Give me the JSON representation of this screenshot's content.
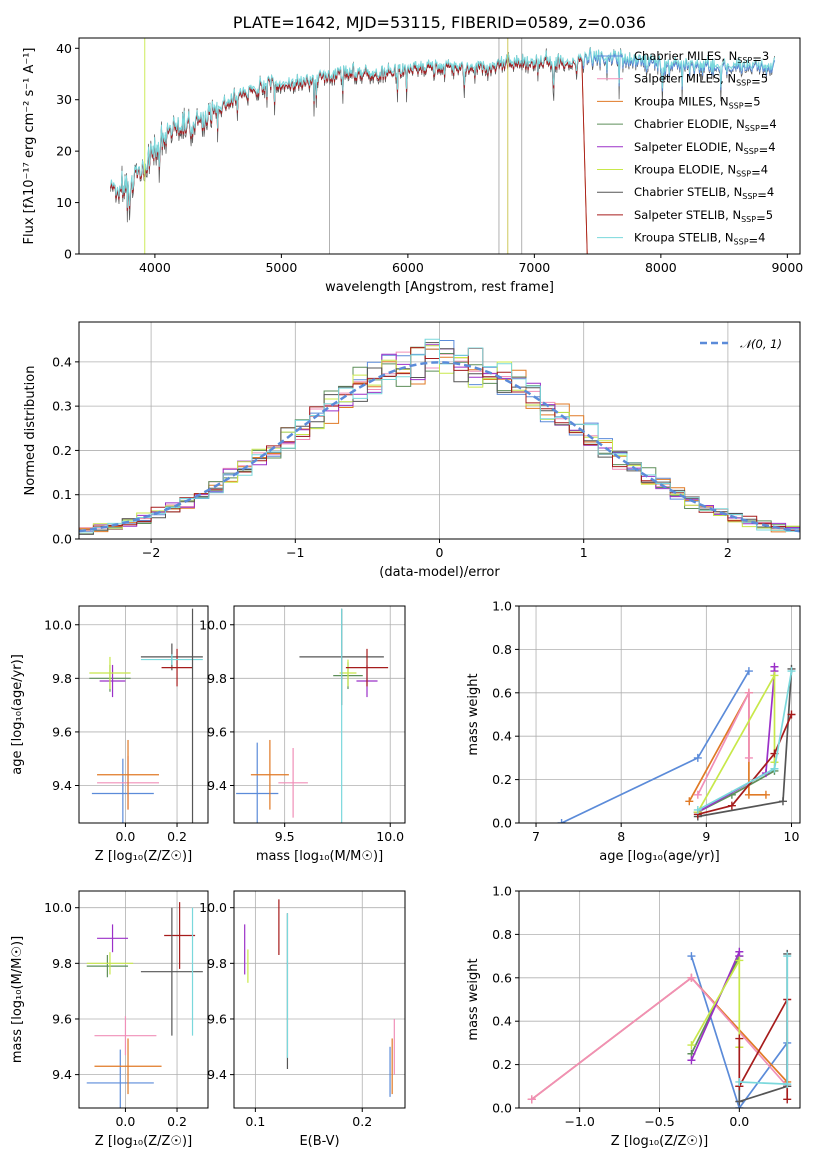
{
  "colors": {
    "Chabrier MILES": "#5b8bd9",
    "Salpeter MILES": "#f08fb8",
    "Kroupa MILES": "#e07a26",
    "Chabrier ELODIE": "#5e8f5a",
    "Salpeter ELODIE": "#9b30c8",
    "Kroupa ELODIE": "#c8e84a",
    "Chabrier STELIB": "#555555",
    "Salpeter STELIB": "#a61c1c",
    "Kroupa STELIB": "#7ad8dc",
    "normal": "#5b8bd9"
  },
  "chart_data": [
    {
      "id": "spectrum",
      "type": "line",
      "title": "PLATE=1642, MJD=53115, FIBERID=0589, z=0.036",
      "xlabel": "wavelength [Angstrom, rest frame]",
      "ylabel": "Flux [fλ10⁻¹⁷ erg cm⁻² s⁻¹ A⁻¹]",
      "xlim": [
        3400,
        9100
      ],
      "ylim": [
        0,
        42
      ],
      "xticks": [
        "4000",
        "5000",
        "6000",
        "7000",
        "8000",
        "9000"
      ],
      "yticks": [
        "0",
        "10",
        "20",
        "30",
        "40"
      ],
      "legend_loc": "right",
      "legend": [
        {
          "name": "Chabrier MILES",
          "sub": "3"
        },
        {
          "name": "Salpeter MILES",
          "sub": "5"
        },
        {
          "name": "Kroupa MILES",
          "sub": "5"
        },
        {
          "name": "Chabrier ELODIE",
          "sub": "4"
        },
        {
          "name": "Salpeter ELODIE",
          "sub": "4"
        },
        {
          "name": "Kroupa ELODIE",
          "sub": "4"
        },
        {
          "name": "Chabrier STELIB",
          "sub": "4"
        },
        {
          "name": "Salpeter STELIB",
          "sub": "5"
        },
        {
          "name": "Kroupa STELIB",
          "sub": "4"
        }
      ],
      "continuum": [
        [
          3650,
          14
        ],
        [
          3700,
          12
        ],
        [
          3800,
          13
        ],
        [
          3900,
          16
        ],
        [
          4000,
          20
        ],
        [
          4100,
          24
        ],
        [
          4200,
          25
        ],
        [
          4300,
          25
        ],
        [
          4500,
          28
        ],
        [
          4700,
          31
        ],
        [
          4900,
          33
        ],
        [
          5100,
          33
        ],
        [
          5300,
          34
        ],
        [
          5500,
          35
        ],
        [
          5700,
          35
        ],
        [
          5900,
          35
        ],
        [
          6100,
          36
        ],
        [
          6300,
          36
        ],
        [
          6500,
          36
        ],
        [
          6700,
          36.5
        ],
        [
          6900,
          37
        ],
        [
          7100,
          37
        ],
        [
          7300,
          37
        ],
        [
          7500,
          38
        ],
        [
          7700,
          37.5
        ],
        [
          7900,
          37
        ],
        [
          8100,
          36.5
        ],
        [
          8300,
          36.5
        ],
        [
          8500,
          36
        ],
        [
          8700,
          36.5
        ],
        [
          8900,
          36
        ]
      ]
    },
    {
      "id": "residuals",
      "type": "area",
      "xlabel": "(data-model)/error",
      "ylabel": "Normed distribution",
      "xlim": [
        -2.5,
        2.5
      ],
      "ylim": [
        0,
        0.49
      ],
      "xticks": [
        "−2",
        "−1",
        "0",
        "1",
        "2"
      ],
      "yticks": [
        "0.0",
        "0.1",
        "0.2",
        "0.3",
        "0.4"
      ],
      "legend": "𝒩(0, 1)",
      "legend_loc": "top-right",
      "bin_width": 0.1,
      "grid": true
    },
    {
      "id": "age-vs-Z",
      "type": "scatter",
      "xlabel": "Z [log₁₀(Z/Z☉)]",
      "ylabel": "age  [log₁₀(age/yr)]",
      "xlim": [
        -0.18,
        0.32
      ],
      "ylim": [
        9.26,
        10.07
      ],
      "xticks": [
        "0.0",
        "0.2"
      ],
      "yticks": [
        "9.4",
        "9.6",
        "9.8",
        "10.0"
      ],
      "points": [
        {
          "series": "Chabrier MILES",
          "x": -0.01,
          "y": 9.37,
          "xerr": 0.12,
          "yerr": 0.13
        },
        {
          "series": "Salpeter MILES",
          "x": 0.01,
          "y": 9.41,
          "xerr": 0.12,
          "yerr": 0.1
        },
        {
          "series": "Kroupa MILES",
          "x": 0.01,
          "y": 9.44,
          "xerr": 0.12,
          "yerr": 0.13
        },
        {
          "series": "Chabrier ELODIE",
          "x": -0.06,
          "y": 9.8,
          "xerr": 0.08,
          "yerr": 0.05
        },
        {
          "series": "Salpeter ELODIE",
          "x": -0.05,
          "y": 9.79,
          "xerr": 0.05,
          "yerr": 0.06
        },
        {
          "series": "Kroupa ELODIE",
          "x": -0.06,
          "y": 9.82,
          "xerr": 0.08,
          "yerr": 0.06
        },
        {
          "series": "Chabrier STELIB",
          "x": 0.18,
          "y": 9.88,
          "xerr": 0.12,
          "yerr": 0.05
        },
        {
          "series": "Salpeter STELIB",
          "x": 0.2,
          "y": 9.84,
          "xerr": 0.06,
          "yerr": 0.07
        },
        {
          "series": "Kroupa STELIB",
          "x": 0.18,
          "y": 9.87,
          "xerr": 0.12,
          "yerr": 0.02
        },
        {
          "series": "Chabrier STELIB",
          "x": 0.26,
          "y": 9.65,
          "xerr": 0.0,
          "yerr": 0.41
        }
      ]
    },
    {
      "id": "age-vs-mass",
      "type": "scatter",
      "xlabel": "mass [log₁₀(M/M☉)]",
      "ylabel": "",
      "xlim": [
        9.26,
        10.07
      ],
      "ylim": [
        9.26,
        10.07
      ],
      "xticks": [
        "9.5",
        "10.0"
      ],
      "yticks": [
        "9.4",
        "9.6",
        "9.8",
        "10.0"
      ],
      "points": [
        {
          "series": "Chabrier MILES",
          "x": 9.37,
          "y": 9.37,
          "xerr": 0.1,
          "yerr": 0.19
        },
        {
          "series": "Kroupa MILES",
          "x": 9.43,
          "y": 9.44,
          "xerr": 0.09,
          "yerr": 0.13
        },
        {
          "series": "Salpeter MILES",
          "x": 9.54,
          "y": 9.41,
          "xerr": 0.07,
          "yerr": 0.13
        },
        {
          "series": "Chabrier ELODIE",
          "x": 9.8,
          "y": 9.81,
          "xerr": 0.07,
          "yerr": 0.05
        },
        {
          "series": "Kroupa ELODIE",
          "x": 9.8,
          "y": 9.82,
          "xerr": 0.04,
          "yerr": 0.05
        },
        {
          "series": "Salpeter ELODIE",
          "x": 9.89,
          "y": 9.79,
          "xerr": 0.05,
          "yerr": 0.06
        },
        {
          "series": "Chabrier STELIB",
          "x": 9.77,
          "y": 9.88,
          "xerr": 0.2,
          "yerr": 0.18
        },
        {
          "series": "Salpeter STELIB",
          "x": 9.89,
          "y": 9.84,
          "xerr": 0.1,
          "yerr": 0.07
        },
        {
          "series": "Kroupa STELIB",
          "x": 9.77,
          "y": 9.65,
          "xerr": 0.0,
          "yerr": 0.41
        }
      ]
    },
    {
      "id": "mass-weight-vs-age",
      "type": "line",
      "xlabel": "age  [log₁₀(age/yr)]",
      "ylabel": "mass weight",
      "xlim": [
        6.8,
        10.1
      ],
      "ylim": [
        0,
        1.0
      ],
      "xticks": [
        "7",
        "8",
        "9",
        "10"
      ],
      "yticks": [
        "0.0",
        "0.2",
        "0.4",
        "0.6",
        "0.8",
        "1.0"
      ],
      "series": [
        {
          "name": "Chabrier MILES",
          "x": [
            7.3,
            8.9,
            9.5
          ],
          "y": [
            0.0,
            0.3,
            0.7
          ]
        },
        {
          "name": "Kroupa MILES",
          "x": [
            8.8,
            9.5,
            9.5,
            9.7
          ],
          "y": [
            0.1,
            0.6,
            0.13,
            0.13
          ]
        },
        {
          "name": "Salpeter MILES",
          "x": [
            8.9,
            9.5,
            9.5
          ],
          "y": [
            0.13,
            0.6,
            0.3
          ]
        },
        {
          "name": "Chabrier ELODIE",
          "x": [
            8.9,
            9.3,
            9.8
          ],
          "y": [
            0.05,
            0.13,
            0.24
          ]
        },
        {
          "name": "Salpeter ELODIE",
          "x": [
            8.9,
            9.7,
            9.8,
            9.8
          ],
          "y": [
            0.05,
            0.23,
            0.7,
            0.72
          ]
        },
        {
          "name": "Kroupa ELODIE",
          "x": [
            8.9,
            9.8,
            9.8
          ],
          "y": [
            0.05,
            0.68,
            0.28
          ]
        },
        {
          "name": "Chabrier STELIB",
          "x": [
            8.9,
            9.9,
            10.0
          ],
          "y": [
            0.03,
            0.1,
            0.71
          ]
        },
        {
          "name": "Salpeter STELIB",
          "x": [
            8.9,
            9.3,
            9.8,
            10.0
          ],
          "y": [
            0.04,
            0.08,
            0.32,
            0.5
          ]
        },
        {
          "name": "Kroupa STELIB",
          "x": [
            8.9,
            9.8,
            10.0
          ],
          "y": [
            0.06,
            0.25,
            0.7
          ]
        }
      ]
    },
    {
      "id": "mass-vs-Z",
      "type": "scatter",
      "xlabel": "Z [log₁₀(Z/Z☉)]",
      "ylabel": "mass [log₁₀(M/M☉)]",
      "xlim": [
        -0.18,
        0.32
      ],
      "ylim": [
        9.28,
        10.06
      ],
      "xticks": [
        "0.0",
        "0.2"
      ],
      "yticks": [
        "9.4",
        "9.6",
        "9.8",
        "10.0"
      ],
      "points": [
        {
          "series": "Chabrier MILES",
          "x": -0.02,
          "y": 9.37,
          "xerr": 0.13,
          "yerr": 0.12
        },
        {
          "series": "Kroupa MILES",
          "x": 0.01,
          "y": 9.43,
          "xerr": 0.13,
          "yerr": 0.1
        },
        {
          "series": "Salpeter MILES",
          "x": 0.0,
          "y": 9.54,
          "xerr": 0.12,
          "yerr": 0.07
        },
        {
          "series": "Chabrier ELODIE",
          "x": -0.07,
          "y": 9.79,
          "xerr": 0.08,
          "yerr": 0.04
        },
        {
          "series": "Kroupa ELODIE",
          "x": -0.06,
          "y": 9.8,
          "xerr": 0.09,
          "yerr": 0.04
        },
        {
          "series": "Salpeter ELODIE",
          "x": -0.05,
          "y": 9.89,
          "xerr": 0.06,
          "yerr": 0.05
        },
        {
          "series": "Salpeter STELIB",
          "x": 0.21,
          "y": 9.9,
          "xerr": 0.06,
          "yerr": 0.12
        },
        {
          "series": "Chabrier STELIB",
          "x": 0.18,
          "y": 9.77,
          "xerr": 0.12,
          "yerr": 0.23
        },
        {
          "series": "Kroupa STELIB",
          "x": 0.26,
          "y": 9.77,
          "xerr": 0.0,
          "yerr": 0.23
        }
      ]
    },
    {
      "id": "mass-vs-EBV",
      "type": "scatter",
      "xlabel": "E(B-V)",
      "ylabel": "",
      "xlim": [
        0.08,
        0.24
      ],
      "ylim": [
        9.28,
        10.06
      ],
      "xticks": [
        "0.1",
        "0.2"
      ],
      "yticks": [
        "9.4",
        "9.6",
        "9.8",
        "10.0"
      ],
      "points": [
        {
          "series": "Salpeter ELODIE",
          "x": 0.09,
          "y": 9.85,
          "xerr": 0,
          "yerr": 0.09
        },
        {
          "series": "Kroupa ELODIE",
          "x": 0.093,
          "y": 9.79,
          "xerr": 0,
          "yerr": 0.06
        },
        {
          "series": "Salpeter STELIB",
          "x": 0.122,
          "y": 9.93,
          "xerr": 0,
          "yerr": 0.1
        },
        {
          "series": "Chabrier STELIB",
          "x": 0.13,
          "y": 9.7,
          "xerr": 0,
          "yerr": 0.28
        },
        {
          "series": "Kroupa STELIB",
          "x": 0.13,
          "y": 9.72,
          "xerr": 0,
          "yerr": 0.26
        },
        {
          "series": "Chabrier MILES",
          "x": 0.226,
          "y": 9.41,
          "xerr": 0,
          "yerr": 0.09
        },
        {
          "series": "Kroupa MILES",
          "x": 0.228,
          "y": 9.43,
          "xerr": 0,
          "yerr": 0.1
        },
        {
          "series": "Salpeter MILES",
          "x": 0.23,
          "y": 9.5,
          "xerr": 0,
          "yerr": 0.1
        }
      ]
    },
    {
      "id": "mass-weight-vs-Z",
      "type": "line",
      "xlabel": "Z [log₁₀(Z/Z☉)]",
      "ylabel": "mass weight",
      "xlim": [
        -1.38,
        0.38
      ],
      "ylim": [
        0,
        1.0
      ],
      "xticks": [
        "−1.0",
        "−0.5",
        "0.0"
      ],
      "yticks": [
        "0.0",
        "0.2",
        "0.4",
        "0.6",
        "0.8",
        "1.0"
      ],
      "series": [
        {
          "name": "Chabrier MILES",
          "x": [
            -0.3,
            0.0,
            0.3,
            0.3
          ],
          "y": [
            0.7,
            0.0,
            0.3,
            0.1
          ]
        },
        {
          "name": "Kroupa MILES",
          "x": [
            -1.3,
            -0.3,
            0.3
          ],
          "y": [
            0.04,
            0.6,
            0.12
          ]
        },
        {
          "name": "Salpeter MILES",
          "x": [
            -1.3,
            -0.3,
            0.3
          ],
          "y": [
            0.04,
            0.6,
            0.1
          ]
        },
        {
          "name": "Chabrier ELODIE",
          "x": [
            -0.3,
            0.0
          ],
          "y": [
            0.25,
            0.7
          ]
        },
        {
          "name": "Salpeter ELODIE",
          "x": [
            -0.3,
            0.0,
            0.0
          ],
          "y": [
            0.22,
            0.72,
            0.7
          ]
        },
        {
          "name": "Kroupa ELODIE",
          "x": [
            -0.3,
            0.0,
            0.0
          ],
          "y": [
            0.29,
            0.68,
            0.28
          ]
        },
        {
          "name": "Chabrier STELIB",
          "x": [
            0.0,
            0.0,
            0.3,
            0.3
          ],
          "y": [
            0.1,
            0.03,
            0.1,
            0.71
          ]
        },
        {
          "name": "Salpeter STELIB",
          "x": [
            0.0,
            0.0,
            0.3,
            0.3
          ],
          "y": [
            0.32,
            0.1,
            0.5,
            0.04
          ]
        },
        {
          "name": "Kroupa STELIB",
          "x": [
            0.0,
            0.3,
            0.3
          ],
          "y": [
            0.12,
            0.11,
            0.7
          ]
        }
      ]
    }
  ]
}
